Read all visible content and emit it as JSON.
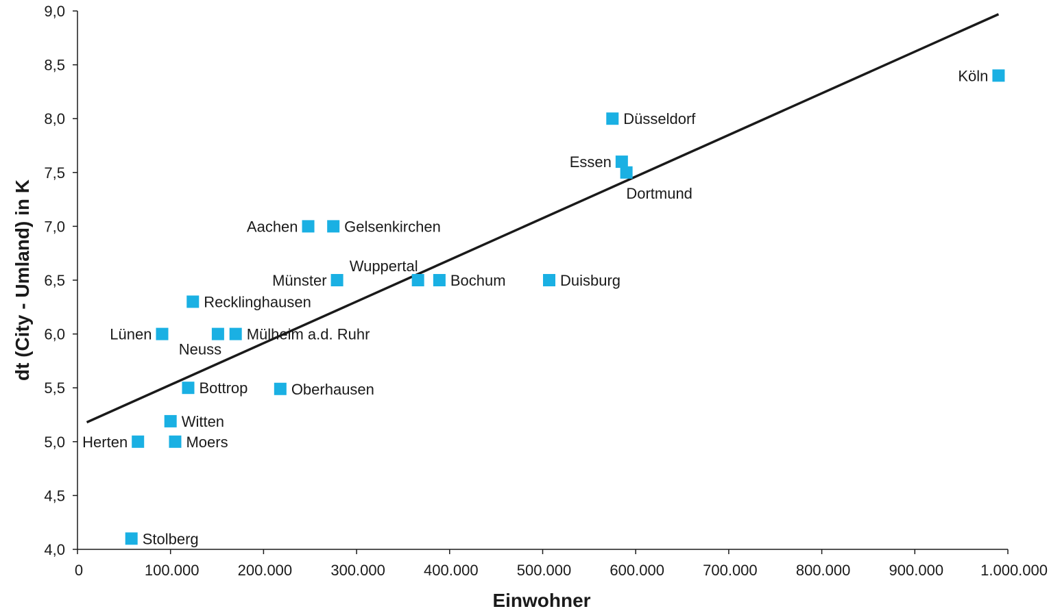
{
  "chart_data": {
    "type": "scatter",
    "xlabel": "Einwohner",
    "ylabel": "dt (City - Umland) in K",
    "xlim": [
      0,
      1000000
    ],
    "ylim": [
      4.0,
      9.0
    ],
    "x_ticks": [
      {
        "value": 0,
        "label": "0"
      },
      {
        "value": 100000,
        "label": "100.000"
      },
      {
        "value": 200000,
        "label": "200.000"
      },
      {
        "value": 300000,
        "label": "300.000"
      },
      {
        "value": 400000,
        "label": "400.000"
      },
      {
        "value": 500000,
        "label": "500.000"
      },
      {
        "value": 600000,
        "label": "600.000"
      },
      {
        "value": 700000,
        "label": "700.000"
      },
      {
        "value": 800000,
        "label": "800.000"
      },
      {
        "value": 900000,
        "label": "900.000"
      },
      {
        "value": 1000000,
        "label": "1.000.000"
      }
    ],
    "y_ticks": [
      {
        "value": 4.0,
        "label": "4,0"
      },
      {
        "value": 4.5,
        "label": "4,5"
      },
      {
        "value": 5.0,
        "label": "5,0"
      },
      {
        "value": 5.5,
        "label": "5,5"
      },
      {
        "value": 6.0,
        "label": "6,0"
      },
      {
        "value": 6.5,
        "label": "6,5"
      },
      {
        "value": 7.0,
        "label": "7,0"
      },
      {
        "value": 7.5,
        "label": "7,5"
      },
      {
        "value": 8.0,
        "label": "8,0"
      },
      {
        "value": 8.5,
        "label": "8,5"
      },
      {
        "value": 9.0,
        "label": "9,0"
      }
    ],
    "marker_color": "#1ab0e3",
    "trend_color": "#1a1a1a",
    "trendline": {
      "x": [
        10000,
        990000
      ],
      "y": [
        5.18,
        8.97
      ]
    },
    "points": [
      {
        "label": "Köln",
        "x": 990000,
        "y": 8.4,
        "label_pos": "left"
      },
      {
        "label": "Düsseldorf",
        "x": 575000,
        "y": 8.0,
        "label_pos": "right"
      },
      {
        "label": "Essen",
        "x": 585000,
        "y": 7.6,
        "label_pos": "left"
      },
      {
        "label": "Dortmund",
        "x": 590000,
        "y": 7.5,
        "label_pos": "below"
      },
      {
        "label": "Aachen",
        "x": 248000,
        "y": 7.0,
        "label_pos": "left"
      },
      {
        "label": "Gelsenkirchen",
        "x": 275000,
        "y": 7.0,
        "label_pos": "right"
      },
      {
        "label": "Münster",
        "x": 279000,
        "y": 6.5,
        "label_pos": "left"
      },
      {
        "label": "Wuppertal",
        "x": 366000,
        "y": 6.5,
        "label_pos": "above"
      },
      {
        "label": "Bochum",
        "x": 389000,
        "y": 6.5,
        "label_pos": "right"
      },
      {
        "label": "Duisburg",
        "x": 507000,
        "y": 6.5,
        "label_pos": "right"
      },
      {
        "label": "Recklinghausen",
        "x": 124000,
        "y": 6.3,
        "label_pos": "right"
      },
      {
        "label": "Lünen",
        "x": 91000,
        "y": 6.0,
        "label_pos": "left"
      },
      {
        "label": "Neuss",
        "x": 151000,
        "y": 6.0,
        "label_pos": "below"
      },
      {
        "label": "Mülheim a.d. Ruhr",
        "x": 170000,
        "y": 6.0,
        "label_pos": "right"
      },
      {
        "label": "Bottrop",
        "x": 119000,
        "y": 5.5,
        "label_pos": "right"
      },
      {
        "label": "Oberhausen",
        "x": 218000,
        "y": 5.49,
        "label_pos": "right"
      },
      {
        "label": "Witten",
        "x": 100000,
        "y": 5.19,
        "label_pos": "right"
      },
      {
        "label": "Herten",
        "x": 65000,
        "y": 5.0,
        "label_pos": "left"
      },
      {
        "label": "Moers",
        "x": 105000,
        "y": 5.0,
        "label_pos": "right"
      },
      {
        "label": "Stolberg",
        "x": 58000,
        "y": 4.1,
        "label_pos": "right"
      }
    ]
  }
}
